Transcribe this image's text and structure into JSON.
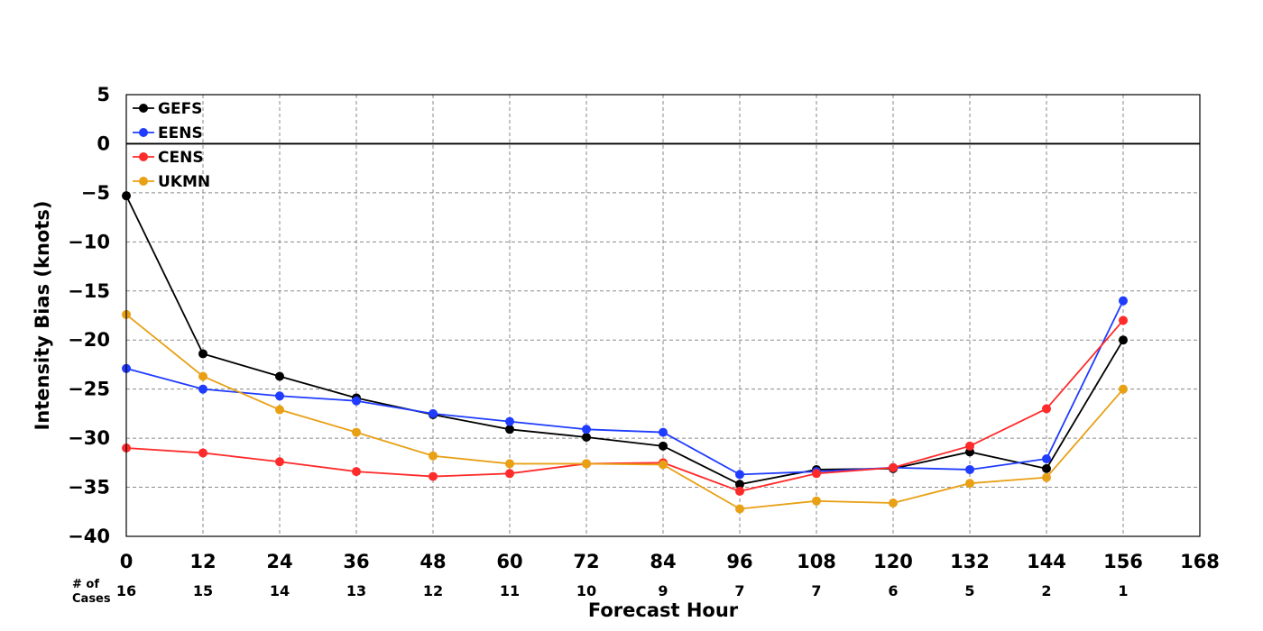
{
  "chart_data": {
    "type": "line",
    "xlabel": "Forecast Hour",
    "ylabel": "Intensity Bias (knots)",
    "xlim": [
      0,
      168
    ],
    "ylim": [
      -40,
      5
    ],
    "xticks": [
      0,
      12,
      24,
      36,
      48,
      60,
      72,
      84,
      96,
      108,
      120,
      132,
      144,
      156,
      168
    ],
    "yticks": [
      5,
      0,
      -5,
      -10,
      -15,
      -20,
      -25,
      -30,
      -35,
      -40
    ],
    "grid": true,
    "grid_style": "dashed",
    "zero_line": true,
    "legend_position": "top-left",
    "cases_title": [
      "# of",
      "Cases"
    ],
    "case_counts": [
      {
        "x": 0,
        "n": "16"
      },
      {
        "x": 12,
        "n": "15"
      },
      {
        "x": 24,
        "n": "14"
      },
      {
        "x": 36,
        "n": "13"
      },
      {
        "x": 48,
        "n": "12"
      },
      {
        "x": 60,
        "n": "11"
      },
      {
        "x": 72,
        "n": "10"
      },
      {
        "x": 84,
        "n": "9"
      },
      {
        "x": 96,
        "n": "7"
      },
      {
        "x": 108,
        "n": "7"
      },
      {
        "x": 120,
        "n": "6"
      },
      {
        "x": 132,
        "n": "5"
      },
      {
        "x": 144,
        "n": "2"
      },
      {
        "x": 156,
        "n": "1"
      }
    ],
    "x": [
      0,
      12,
      24,
      36,
      48,
      60,
      72,
      84,
      96,
      108,
      120,
      132,
      144,
      156
    ],
    "series": [
      {
        "name": "GEFS",
        "color": "#000000",
        "values": [
          -5.3,
          -21.4,
          -23.7,
          -25.9,
          -27.6,
          -29.1,
          -29.9,
          -30.8,
          -34.7,
          -33.2,
          -33.1,
          -31.4,
          -33.1,
          -20.0
        ]
      },
      {
        "name": "EENS",
        "color": "#1f3cff",
        "values": [
          -22.9,
          -25.0,
          -25.7,
          -26.2,
          -27.5,
          -28.3,
          -29.1,
          -29.4,
          -33.7,
          -33.4,
          -33.0,
          -33.2,
          -32.1,
          -16.0
        ]
      },
      {
        "name": "CENS",
        "color": "#ff2a2a",
        "values": [
          -31.0,
          -31.5,
          -32.4,
          -33.4,
          -33.9,
          -33.6,
          -32.6,
          -32.5,
          -35.4,
          -33.6,
          -33.0,
          -30.8,
          -27.0,
          -18.0
        ]
      },
      {
        "name": "UKMN",
        "color": "#e8a015",
        "values": [
          -17.4,
          -23.7,
          -27.1,
          -29.4,
          -31.8,
          -32.6,
          -32.6,
          -32.7,
          -37.2,
          -36.4,
          -36.6,
          -34.6,
          -34.0,
          -25.0
        ]
      }
    ]
  }
}
